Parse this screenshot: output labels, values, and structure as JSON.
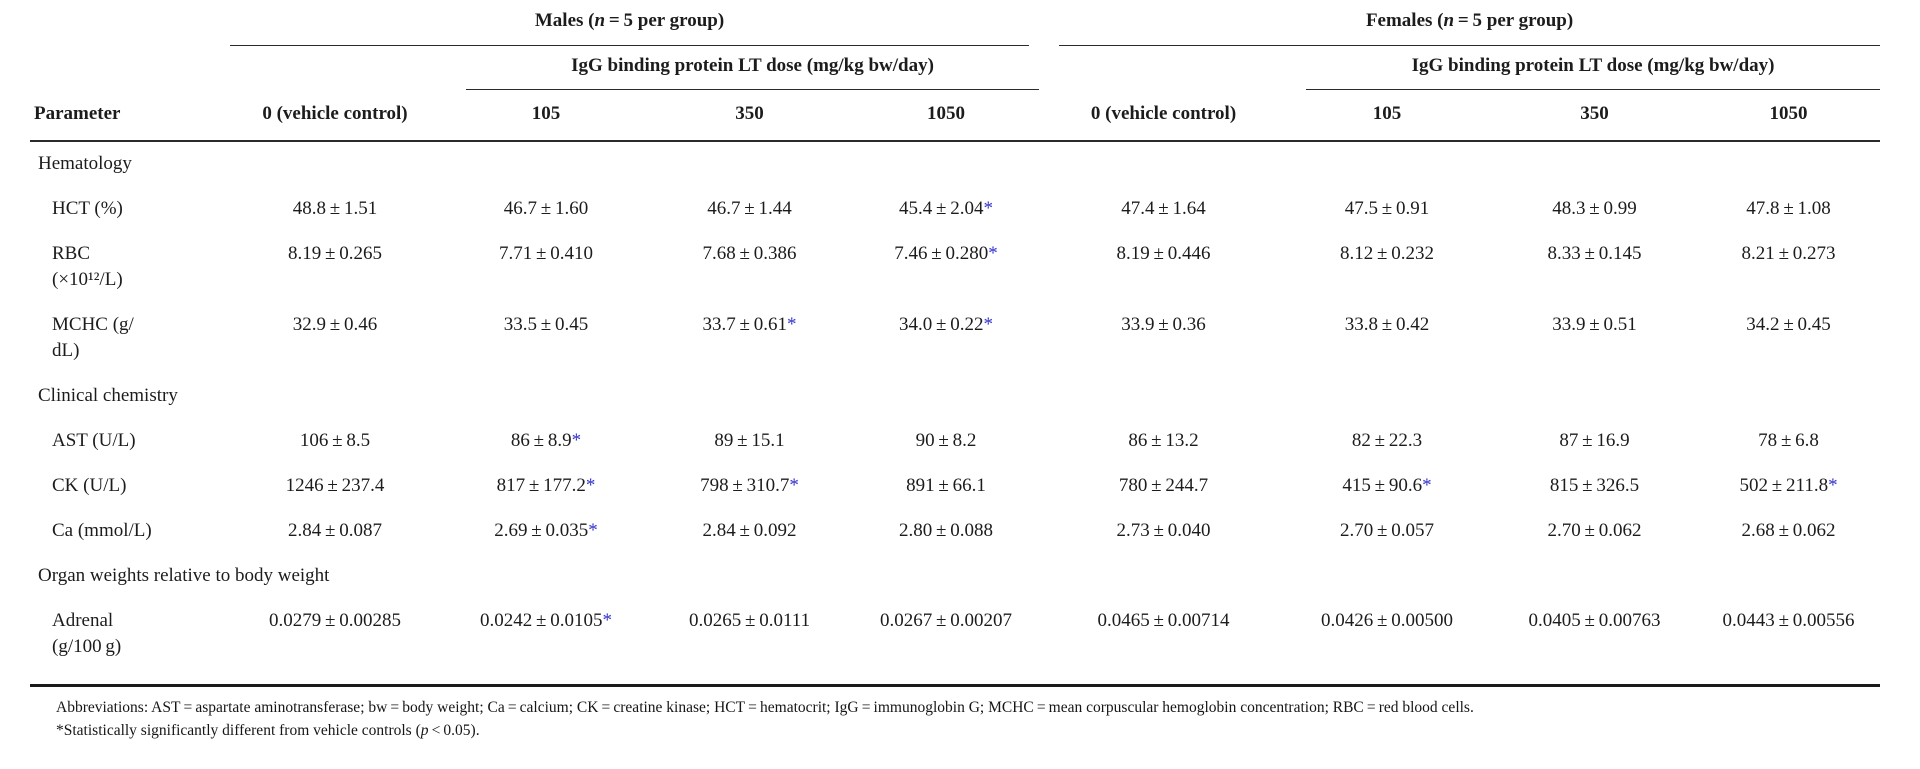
{
  "colors": {
    "text": "#1c1c1c",
    "rule": "#2b2b2b",
    "significance_asterisk": "#3333cc"
  },
  "header": {
    "param_label": "Parameter",
    "males": {
      "pre": "Males (",
      "italic": "n",
      "post": " = 5 per group)"
    },
    "females": {
      "pre": "Females (",
      "italic": "n",
      "post": " = 5 per group)"
    },
    "dose_label_males": "IgG binding protein LT dose (mg/kg bw/day)",
    "dose_label_females": "IgG binding protein LT dose (mg/kg bw/day)",
    "col_labels": [
      "0 (vehicle control)",
      "105",
      "350",
      "1050"
    ]
  },
  "table": {
    "rows": [
      {
        "type": "section",
        "label": "Hematology"
      },
      {
        "type": "param",
        "label": "HCT (%)",
        "values": [
          "48.8 ± 1.51",
          "46.7 ± 1.60",
          "46.7 ± 1.44",
          "45.4 ± 2.04*",
          "47.4 ± 1.64",
          "47.5 ± 0.91",
          "48.3 ± 0.99",
          "47.8 ± 1.08"
        ]
      },
      {
        "type": "param",
        "label": "RBC\n(×10¹²/L)",
        "values": [
          "8.19 ± 0.265",
          "7.71 ± 0.410",
          "7.68 ± 0.386",
          "7.46 ± 0.280*",
          "8.19 ± 0.446",
          "8.12 ± 0.232",
          "8.33 ± 0.145",
          "8.21 ± 0.273"
        ]
      },
      {
        "type": "param",
        "label": "MCHC (g/\ndL)",
        "values": [
          "32.9 ± 0.46",
          "33.5 ± 0.45",
          "33.7 ± 0.61*",
          "34.0 ± 0.22*",
          "33.9 ± 0.36",
          "33.8 ± 0.42",
          "33.9 ± 0.51",
          "34.2 ± 0.45"
        ]
      },
      {
        "type": "section",
        "label": "Clinical chemistry"
      },
      {
        "type": "param",
        "label": "AST (U/L)",
        "values": [
          "106 ± 8.5",
          "86 ± 8.9*",
          "89 ± 15.1",
          "90 ± 8.2",
          "86 ± 13.2",
          "82 ± 22.3",
          "87 ± 16.9",
          "78 ± 6.8"
        ]
      },
      {
        "type": "param",
        "label": "CK (U/L)",
        "values": [
          "1246 ± 237.4",
          "817 ± 177.2*",
          "798 ± 310.7*",
          "891 ± 66.1",
          "780 ± 244.7",
          "415 ± 90.6*",
          "815 ± 326.5",
          "502 ± 211.8*"
        ]
      },
      {
        "type": "param",
        "label": "Ca (mmol/L)",
        "values": [
          "2.84 ± 0.087",
          "2.69 ± 0.035*",
          "2.84 ± 0.092",
          "2.80 ± 0.088",
          "2.73 ± 0.040",
          "2.70 ± 0.057",
          "2.70 ± 0.062",
          "2.68 ± 0.062"
        ]
      },
      {
        "type": "section",
        "label": "Organ weights relative to body weight"
      },
      {
        "type": "param",
        "label": "Adrenal\n(g/100 g)",
        "values": [
          "0.0279 ± 0.00285",
          "0.0242 ± 0.0105*",
          "0.0265 ± 0.0111",
          "0.0267 ± 0.00207",
          "0.0465 ± 0.00714",
          "0.0426 ± 0.00500",
          "0.0405 ± 0.00763",
          "0.0443 ± 0.00556"
        ]
      }
    ]
  },
  "footnotes": {
    "abbreviations": "Abbreviations: AST = aspartate aminotransferase; bw = body weight; Ca = calcium; CK = creatine kinase; HCT = hematocrit; IgG = immunoglobin G; MCHC = mean corpuscular hemoglobin concentration; RBC = red blood cells.",
    "significance": {
      "pre": "*Statistically significantly different from vehicle controls (",
      "italic": "p",
      "post": " < 0.05)."
    }
  }
}
